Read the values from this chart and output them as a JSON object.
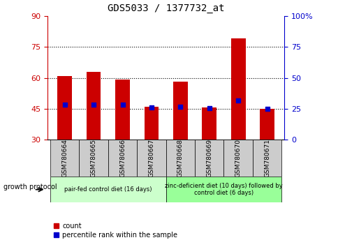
{
  "title": "GDS5033 / 1377732_at",
  "samples": [
    "GSM780664",
    "GSM780665",
    "GSM780666",
    "GSM780667",
    "GSM780668",
    "GSM780669",
    "GSM780670",
    "GSM780671"
  ],
  "bar_tops": [
    61,
    63,
    59,
    46,
    58,
    45.5,
    79,
    45
  ],
  "bar_bottom": 30,
  "blue_dots_left": [
    47,
    47,
    47,
    45.5,
    46,
    45.3,
    49,
    45
  ],
  "ylim_left": [
    30,
    90
  ],
  "yticks_left": [
    30,
    45,
    60,
    75,
    90
  ],
  "ylim_right": [
    0,
    100
  ],
  "yticks_right": [
    0,
    25,
    50,
    75,
    100
  ],
  "ytick_right_labels": [
    "0",
    "25",
    "50",
    "75",
    "100%"
  ],
  "left_axis_color": "#cc0000",
  "right_axis_color": "#0000cc",
  "bar_color": "#cc0000",
  "dot_color": "#0000cc",
  "group1_label": "pair-fed control diet (16 days)",
  "group2_label": "zinc-deficient diet (10 days) followed by\ncontrol diet (6 days)",
  "group1_color": "#ccffcc",
  "group2_color": "#99ff99",
  "protocol_label": "growth protocol",
  "legend_count": "count",
  "legend_pct": "percentile rank within the sample",
  "xlabel_area_color": "#cccccc",
  "bar_width": 0.5
}
